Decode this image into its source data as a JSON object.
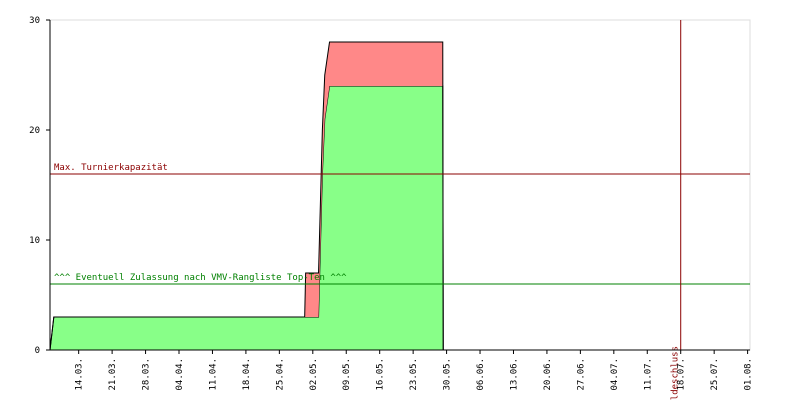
{
  "chart_data": {
    "type": "area",
    "stacked": true,
    "x": [
      0,
      0.8,
      53.3,
      53.5,
      56,
      56.2,
      57,
      57.5,
      58.5,
      82.2,
      82.3
    ],
    "series": [
      {
        "color": "#88ff88",
        "values": [
          0,
          3,
          3,
          3,
          3,
          3,
          16,
          21,
          24,
          24,
          0
        ]
      },
      {
        "color": "#ff8888",
        "values": [
          0,
          0,
          0,
          4,
          4,
          4,
          4,
          4,
          4,
          4,
          0
        ]
      }
    ],
    "xlim": [
      0,
      146.5
    ],
    "ylim": [
      0,
      30
    ],
    "yticks": [
      0,
      10,
      20,
      30
    ],
    "xticks": [
      {
        "value": 6,
        "label": "14.03."
      },
      {
        "value": 13,
        "label": "21.03."
      },
      {
        "value": 20,
        "label": "28.03."
      },
      {
        "value": 27,
        "label": "04.04."
      },
      {
        "value": 34,
        "label": "11.04."
      },
      {
        "value": 41,
        "label": "18.04."
      },
      {
        "value": 48,
        "label": "25.04."
      },
      {
        "value": 55,
        "label": "02.05."
      },
      {
        "value": 62,
        "label": "09.05."
      },
      {
        "value": 69,
        "label": "16.05."
      },
      {
        "value": 76,
        "label": "23.05."
      },
      {
        "value": 83,
        "label": "30.05."
      },
      {
        "value": 90,
        "label": "06.06."
      },
      {
        "value": 97,
        "label": "13.06."
      },
      {
        "value": 104,
        "label": "20.06."
      },
      {
        "value": 111,
        "label": "27.06."
      },
      {
        "value": 118,
        "label": "04.07."
      },
      {
        "value": 125,
        "label": "11.07."
      },
      {
        "value": 132,
        "label": "18.07."
      },
      {
        "value": 139,
        "label": "25.07."
      },
      {
        "value": 146,
        "label": "01.08."
      }
    ],
    "annotations": [
      {
        "text": "Max. Turnierkapazität",
        "y": 16,
        "color": "#8b0000"
      },
      {
        "text": "^^^ Eventuell Zulassung nach VMV-Rangliste Top-Ten ^^^",
        "y": 6,
        "color": "#008000"
      },
      {
        "text": "Meldeschluss",
        "x": 132,
        "color": "#8b0000"
      }
    ]
  }
}
